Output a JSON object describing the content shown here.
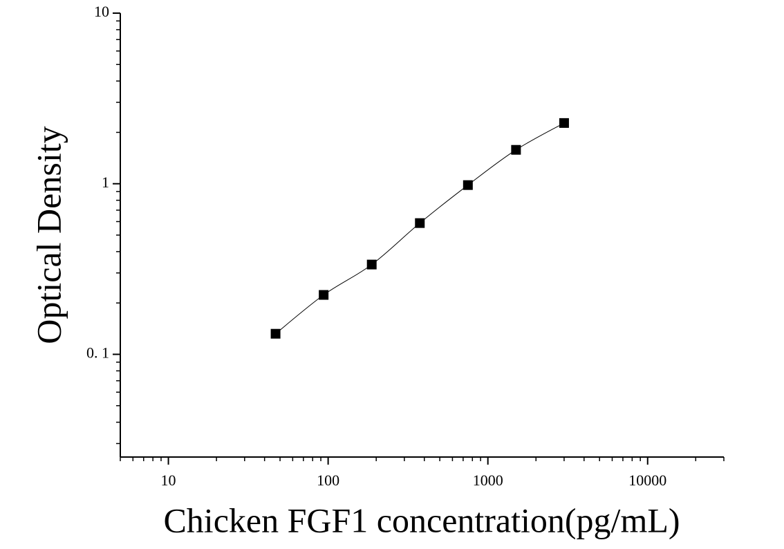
{
  "chart_data": {
    "type": "scatter",
    "x_label": "Chicken FGF1 concentration(pg/mL)",
    "y_label": "Optical Density",
    "x": [
      46.875,
      93.75,
      187.5,
      375,
      750,
      1500,
      3000
    ],
    "values": [
      0.132,
      0.223,
      0.336,
      0.588,
      0.982,
      1.58,
      2.27
    ],
    "color": "#000000",
    "fit_line": true,
    "xscale": "log",
    "yscale": "log",
    "xlim": [
      5,
      30000
    ],
    "ylim": [
      0.025,
      10
    ],
    "xticks": [
      10,
      100,
      1000,
      10000
    ],
    "yticks": [
      {
        "value": 0.1,
        "label": "0. 1"
      },
      1,
      10
    ]
  }
}
